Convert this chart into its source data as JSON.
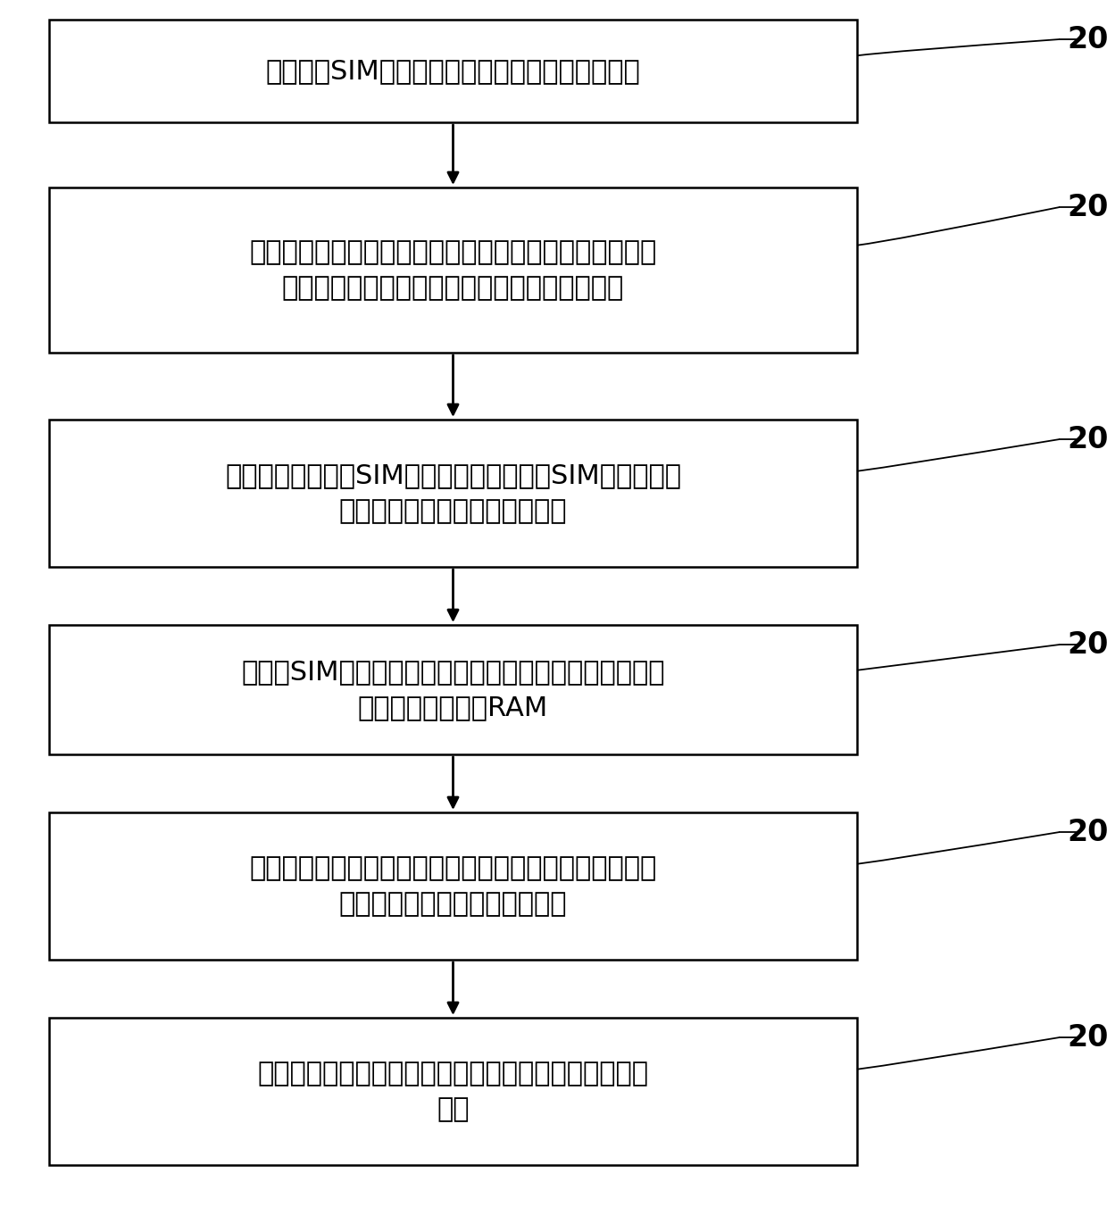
{
  "background_color": "#ffffff",
  "boxes": [
    {
      "id": "201",
      "lines": [
        "终端下载SIM通信信息、保密算法和保密算法密钥"
      ]
    },
    {
      "id": "202",
      "lines": [
        "将所述保密算法写入所述终端的第一预留存储空间，将所",
        "述保密算法密钥写入所终端的第二预留存储空间"
      ]
    },
    {
      "id": "203",
      "lines": [
        "当接收到选择所述SIM卡的指令时，将所述SIM通信信息写",
        "入所述终端的第三预留存储空间"
      ]
    },
    {
      "id": "204",
      "lines": [
        "当所述SIM卡被激活后，将所述保密算法和保密算法密钥",
        "加载到所述终端的RAM"
      ]
    },
    {
      "id": "205",
      "lines": [
        "将网络侧下发的随机数和所述保密算法密钥作为所述保密",
        "算法的输入参数，执行保密算法"
      ]
    },
    {
      "id": "207",
      "lines": [
        "根据所述保密算法的执行结果确定终端用户的身份鉴权",
        "结果"
      ]
    }
  ],
  "box_color": "#ffffff",
  "box_edge_color": "#000000",
  "arrow_color": "#000000",
  "label_color": "#000000",
  "number_color": "#000000",
  "font_size": 22,
  "number_font_size": 24,
  "fig_width": 12.4,
  "fig_height": 13.8
}
